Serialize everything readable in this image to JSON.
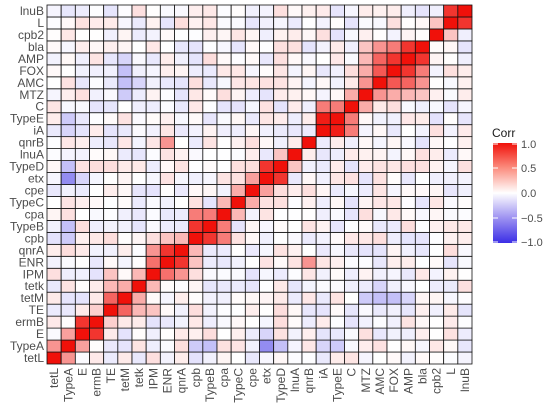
{
  "chart_data": {
    "type": "heatmap",
    "variables": [
      "tetL",
      "TypeA",
      "E",
      "ermB",
      "TE",
      "tetM",
      "tetk",
      "IPM",
      "ENR",
      "qnrA",
      "cpb",
      "TypeB",
      "cpa",
      "TypeC",
      "cpe",
      "etx",
      "TypeD",
      "lnuA",
      "qnrB",
      "iA",
      "TypeE",
      "C",
      "MTZ",
      "AMC",
      "FOX",
      "AMP",
      "bla",
      "cpb2",
      "L",
      "lnuB"
    ],
    "legend": {
      "title": "Corr",
      "ticks": [
        1.0,
        0.5,
        0.0,
        -0.5,
        -1.0
      ],
      "tick_labels": [
        "1.0",
        "0.5",
        "0.0",
        "−0.5",
        "−1.0"
      ],
      "range": [
        -1,
        1
      ],
      "colors": {
        "low": "#3b2ee6",
        "mid": "#ffffff",
        "high": "#f0110a"
      }
    },
    "strong_pairs": [
      {
        "a": "tetL",
        "b": "TypeA",
        "value": 0.45
      },
      {
        "a": "TypeA",
        "b": "E",
        "value": 0.4
      },
      {
        "a": "E",
        "b": "ermB",
        "value": 0.85
      },
      {
        "a": "ermB",
        "b": "TE",
        "value": 0.2
      },
      {
        "a": "TE",
        "b": "tetM",
        "value": 0.65
      },
      {
        "a": "TE",
        "b": "tetk",
        "value": 0.3
      },
      {
        "a": "TE",
        "b": "IPM",
        "value": 0.25
      },
      {
        "a": "tetM",
        "b": "tetk",
        "value": 0.35
      },
      {
        "a": "tetk",
        "b": "IPM",
        "value": 0.3
      },
      {
        "a": "IPM",
        "b": "ENR",
        "value": 0.6
      },
      {
        "a": "IPM",
        "b": "qnrA",
        "value": 0.45
      },
      {
        "a": "ENR",
        "b": "qnrA",
        "value": 0.85
      },
      {
        "a": "ENR",
        "b": "cpb",
        "value": 0.25
      },
      {
        "a": "qnrA",
        "b": "cpb",
        "value": 0.3
      },
      {
        "a": "cpb",
        "b": "TypeB",
        "value": 0.85
      },
      {
        "a": "cpb",
        "b": "cpa",
        "value": 0.55
      },
      {
        "a": "TypeB",
        "b": "cpa",
        "value": 0.55
      },
      {
        "a": "cpa",
        "b": "TypeC",
        "value": 0.3
      },
      {
        "a": "TypeC",
        "b": "cpe",
        "value": 0.35
      },
      {
        "a": "cpe",
        "b": "etx",
        "value": 0.4
      },
      {
        "a": "etx",
        "b": "TypeD",
        "value": 0.85
      },
      {
        "a": "TypeD",
        "b": "lnuA",
        "value": 0.25
      },
      {
        "a": "qnrB",
        "b": "ENR",
        "value": 0.45
      },
      {
        "a": "iA",
        "b": "TypeE",
        "value": 0.95
      },
      {
        "a": "iA",
        "b": "C",
        "value": 0.55
      },
      {
        "a": "TypeE",
        "b": "C",
        "value": 0.55
      },
      {
        "a": "C",
        "b": "MTZ",
        "value": 0.35
      },
      {
        "a": "MTZ",
        "b": "AMC",
        "value": 0.45
      },
      {
        "a": "MTZ",
        "b": "FOX",
        "value": 0.35
      },
      {
        "a": "MTZ",
        "b": "AMP",
        "value": 0.3
      },
      {
        "a": "MTZ",
        "b": "bla",
        "value": 0.25
      },
      {
        "a": "AMC",
        "b": "FOX",
        "value": 0.7
      },
      {
        "a": "AMC",
        "b": "AMP",
        "value": 0.65
      },
      {
        "a": "AMC",
        "b": "bla",
        "value": 0.45
      },
      {
        "a": "FOX",
        "b": "AMP",
        "value": 0.85
      },
      {
        "a": "FOX",
        "b": "bla",
        "value": 0.55
      },
      {
        "a": "AMP",
        "b": "bla",
        "value": 0.85
      },
      {
        "a": "L",
        "b": "lnuB",
        "value": 0.85
      },
      {
        "a": "cpb2",
        "b": "L",
        "value": 0.25
      },
      {
        "a": "TypeA",
        "b": "etx",
        "value": -0.55
      },
      {
        "a": "TypeA",
        "b": "TypeD",
        "value": -0.3
      },
      {
        "a": "TypeA",
        "b": "cpb",
        "value": -0.25
      },
      {
        "a": "TypeA",
        "b": "TypeB",
        "value": -0.3
      },
      {
        "a": "TypeA",
        "b": "iA",
        "value": -0.2
      },
      {
        "a": "TypeA",
        "b": "TypeE",
        "value": -0.25
      },
      {
        "a": "tetM",
        "b": "MTZ",
        "value": -0.25
      },
      {
        "a": "tetM",
        "b": "AMC",
        "value": -0.3
      },
      {
        "a": "tetM",
        "b": "FOX",
        "value": -0.3
      },
      {
        "a": "tetM",
        "b": "AMP",
        "value": -0.2
      },
      {
        "a": "tetk",
        "b": "AMC",
        "value": -0.2
      },
      {
        "a": "E",
        "b": "etx",
        "value": -0.2
      }
    ]
  }
}
